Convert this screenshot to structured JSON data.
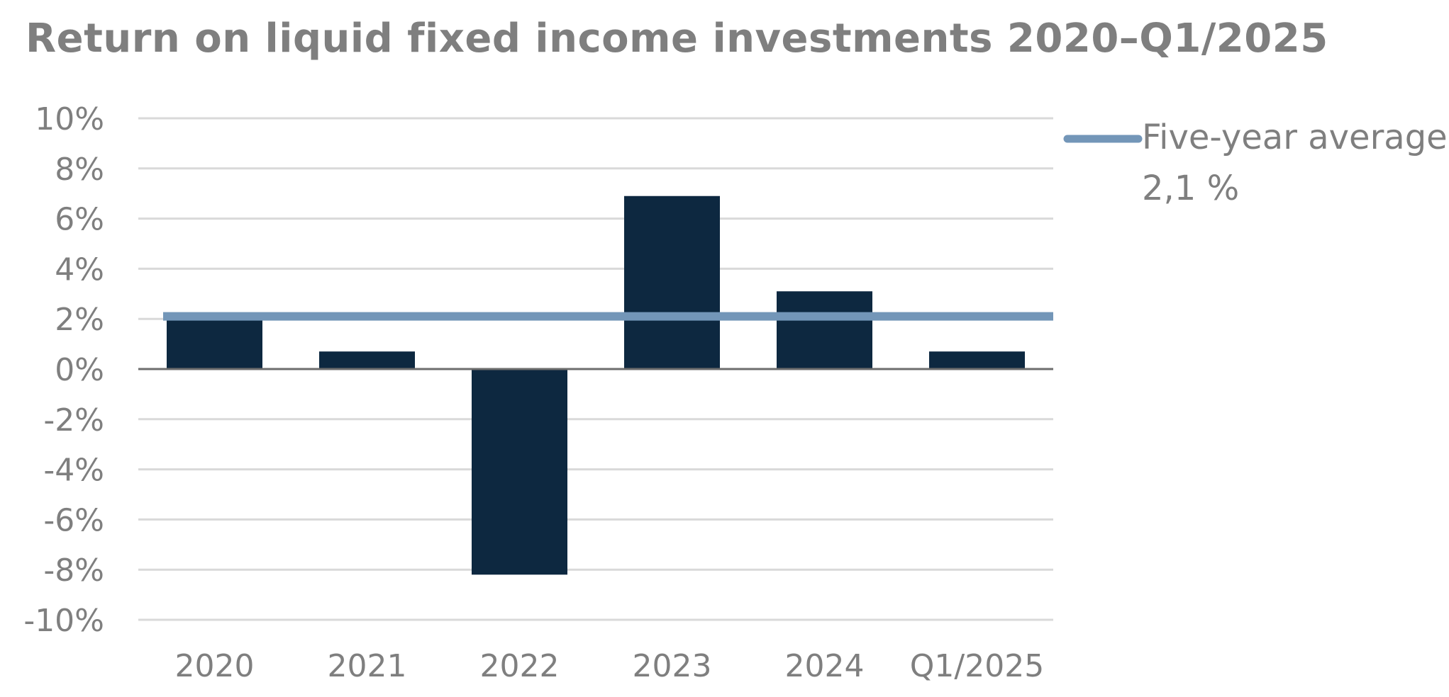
{
  "chart_data": {
    "type": "bar",
    "title": "Return on liquid fixed income investments 2020–Q1/2025",
    "categories": [
      "2020",
      "2021",
      "2022",
      "2023",
      "2024",
      "Q1/2025"
    ],
    "series": [
      {
        "values": [
          2.1,
          0.7,
          -8.2,
          6.9,
          3.1,
          0.7
        ]
      }
    ],
    "reference_line": {
      "name": "Five-year average",
      "label": "2,1 %",
      "value": 2.1
    },
    "ylim": [
      -10,
      10
    ],
    "yticks": [
      10,
      8,
      6,
      4,
      2,
      0,
      -2,
      -4,
      -6,
      -8,
      -10
    ],
    "ytick_labels": [
      "10%",
      "8%",
      "6%",
      "4%",
      "2%",
      "0%",
      "-2%",
      "-4%",
      "-6%",
      "-8%",
      "-10%"
    ],
    "grid": true,
    "legend_position": "top-right",
    "colors": {
      "bar": "#0d2840",
      "average_line": "#7396b8",
      "grid": "#d9d9d9",
      "zero_axis": "#6d6d6d",
      "text": "#7f7f7f"
    }
  }
}
